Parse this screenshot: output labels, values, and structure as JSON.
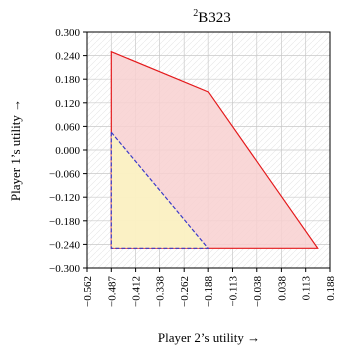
{
  "chart_data": {
    "type": "area",
    "title": "B323",
    "title_superscript": "2",
    "xlabel": "Player 2’s utility →",
    "ylabel": "Player 1’s utility →",
    "xlim": [
      -0.562,
      0.188
    ],
    "ylim": [
      -0.3,
      0.3
    ],
    "xticks": [
      -0.562,
      -0.487,
      -0.412,
      -0.338,
      -0.262,
      -0.188,
      -0.113,
      -0.038,
      0.038,
      0.113,
      0.188
    ],
    "xtick_labels": [
      "−0.562",
      "−0.487",
      "−0.412",
      "−0.338",
      "−0.262",
      "−0.188",
      "−0.113",
      "−0.038",
      "0.038",
      "0.113",
      "0.188"
    ],
    "yticks": [
      0.3,
      0.24,
      0.18,
      0.12,
      0.06,
      0.0,
      -0.06,
      -0.12,
      -0.18,
      -0.24,
      -0.3
    ],
    "ytick_labels": [
      "0.300",
      "0.240",
      "0.180",
      "0.120",
      "0.060",
      "0.000",
      "−0.060",
      "−0.120",
      "−0.180",
      "−0.240",
      "−0.300"
    ],
    "grid": true,
    "series": [
      {
        "fill": "#f8d0d0",
        "stroke": "#e41a1c",
        "dashed": false,
        "points": [
          [
            -0.487,
            0.25
          ],
          [
            -0.188,
            0.148
          ],
          [
            0.15,
            -0.25
          ],
          [
            -0.487,
            -0.25
          ]
        ]
      },
      {
        "fill": "#fbf6c2",
        "stroke": "#3b3bc8",
        "dashed": true,
        "points": [
          [
            -0.487,
            0.045
          ],
          [
            -0.188,
            -0.25
          ],
          [
            -0.487,
            -0.25
          ]
        ]
      }
    ]
  }
}
